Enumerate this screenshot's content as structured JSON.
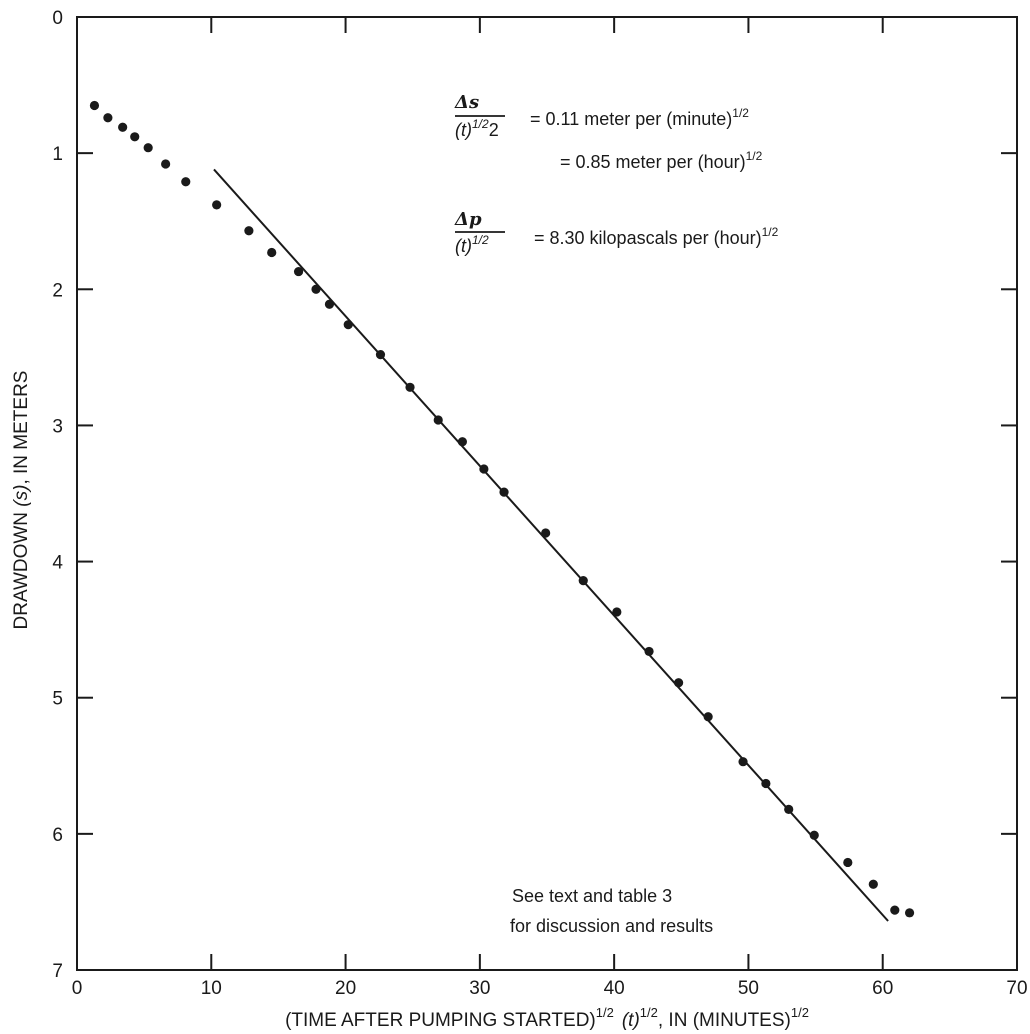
{
  "chart_data": {
    "type": "scatter",
    "title": "",
    "xlabel": {
      "main": "(TIME AFTER PUMPING STARTED)",
      "sup1": "1/2",
      "var": "(t)",
      "sup2": "1/2",
      "unit": ", IN (MINUTES)",
      "sup3": "1/2"
    },
    "ylabel": {
      "pre": "DRAWDOWN ",
      "var": "(s)",
      "post": ", IN METERS"
    },
    "xlim": [
      0,
      70
    ],
    "ylim": [
      0,
      7
    ],
    "y_inverted": true,
    "grid": false,
    "x_ticks": [
      "0",
      "10",
      "20",
      "30",
      "40",
      "50",
      "60",
      "70"
    ],
    "y_ticks": [
      "0",
      "1",
      "2",
      "3",
      "4",
      "5",
      "6",
      "7"
    ],
    "x_tick_values": [
      0,
      10,
      20,
      30,
      40,
      50,
      60,
      70
    ],
    "y_tick_values": [
      0,
      1,
      2,
      3,
      4,
      5,
      6,
      7
    ],
    "series": [
      {
        "points": [
          [
            1.3,
            0.65
          ],
          [
            2.3,
            0.74
          ],
          [
            3.4,
            0.81
          ],
          [
            4.3,
            0.88
          ],
          [
            5.3,
            0.96
          ],
          [
            6.6,
            1.08
          ],
          [
            8.1,
            1.21
          ],
          [
            10.4,
            1.38
          ],
          [
            12.8,
            1.57
          ],
          [
            14.5,
            1.73
          ],
          [
            16.5,
            1.87
          ],
          [
            17.8,
            2.0
          ],
          [
            18.8,
            2.11
          ],
          [
            20.2,
            2.26
          ],
          [
            22.6,
            2.48
          ],
          [
            24.8,
            2.72
          ],
          [
            26.9,
            2.96
          ],
          [
            28.7,
            3.12
          ],
          [
            30.3,
            3.32
          ],
          [
            31.8,
            3.49
          ],
          [
            34.9,
            3.79
          ],
          [
            37.7,
            4.14
          ],
          [
            40.2,
            4.37
          ],
          [
            42.6,
            4.66
          ],
          [
            44.8,
            4.89
          ],
          [
            47.0,
            5.14
          ],
          [
            49.6,
            5.47
          ],
          [
            51.3,
            5.63
          ],
          [
            53.0,
            5.82
          ],
          [
            54.9,
            6.01
          ],
          [
            57.4,
            6.21
          ],
          [
            59.3,
            6.37
          ],
          [
            60.9,
            6.56
          ],
          [
            62.0,
            6.58
          ]
        ]
      }
    ],
    "fit_line": {
      "x": [
        10.2,
        60.4
      ],
      "y": [
        1.12,
        6.64
      ]
    },
    "annotations": {
      "slope_s": {
        "num": "Δs",
        "den": "(t)",
        "den_sup": "1/2",
        "den_tail": "2",
        "line1": "= 0.11 meter per (minute)",
        "line1_sup": "1/2",
        "line2": "= 0.85 meter per (hour)",
        "line2_sup": "1/2"
      },
      "slope_p": {
        "num": "Δp",
        "den": "(t)",
        "den_sup": "1/2",
        "line": "= 8.30 kilopascals per (hour)",
        "line_sup": "1/2"
      },
      "note": [
        "See text and table 3",
        "for discussion and results"
      ]
    }
  }
}
